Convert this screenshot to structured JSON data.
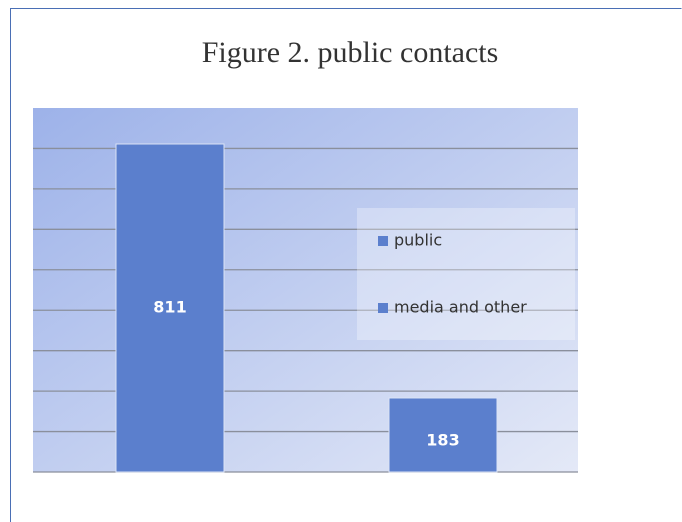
{
  "chart_data": {
    "type": "bar",
    "title": "Figure 2. public contacts",
    "categories": [
      "public",
      "media and other"
    ],
    "values": [
      811,
      183
    ],
    "color": "#5b7fcd",
    "ylim": [
      0,
      900
    ],
    "yticks": [
      0,
      100,
      200,
      300,
      400,
      500,
      600,
      700,
      800
    ],
    "grid": true,
    "legend": "right"
  }
}
